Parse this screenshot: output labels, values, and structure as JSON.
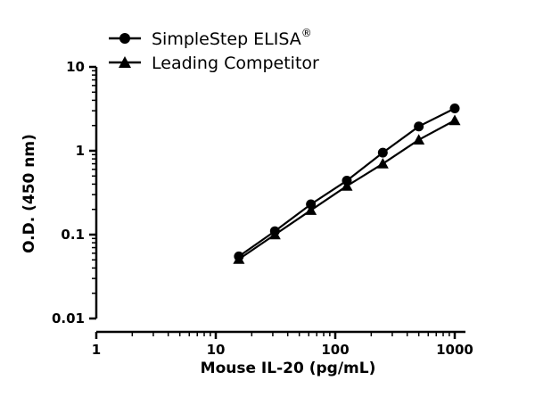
{
  "chart_data": {
    "type": "line",
    "xlabel": "Mouse IL-20 (pg/mL)",
    "ylabel": "O.D. (450 nm)",
    "x_scale": "log",
    "y_scale": "log",
    "xlim": [
      1,
      1000
    ],
    "ylim": [
      0.01,
      10
    ],
    "x_ticks": [
      "1",
      "10",
      "100",
      "1000"
    ],
    "y_ticks": [
      "0.01",
      "0.1",
      "1",
      "10"
    ],
    "legend_position": "top-left",
    "series": [
      {
        "name": "SimpleStep ELISA",
        "name_superscript": "®",
        "marker": "circle",
        "color": "#000000",
        "x": [
          15.6,
          31.25,
          62.5,
          125,
          250,
          500,
          1000
        ],
        "y": [
          0.055,
          0.11,
          0.23,
          0.44,
          0.95,
          1.95,
          3.2
        ]
      },
      {
        "name": "Leading Competitor",
        "marker": "triangle",
        "color": "#000000",
        "x": [
          15.6,
          31.25,
          62.5,
          125,
          250,
          500,
          1000
        ],
        "y": [
          0.051,
          0.1,
          0.195,
          0.38,
          0.7,
          1.35,
          2.3
        ]
      }
    ]
  }
}
